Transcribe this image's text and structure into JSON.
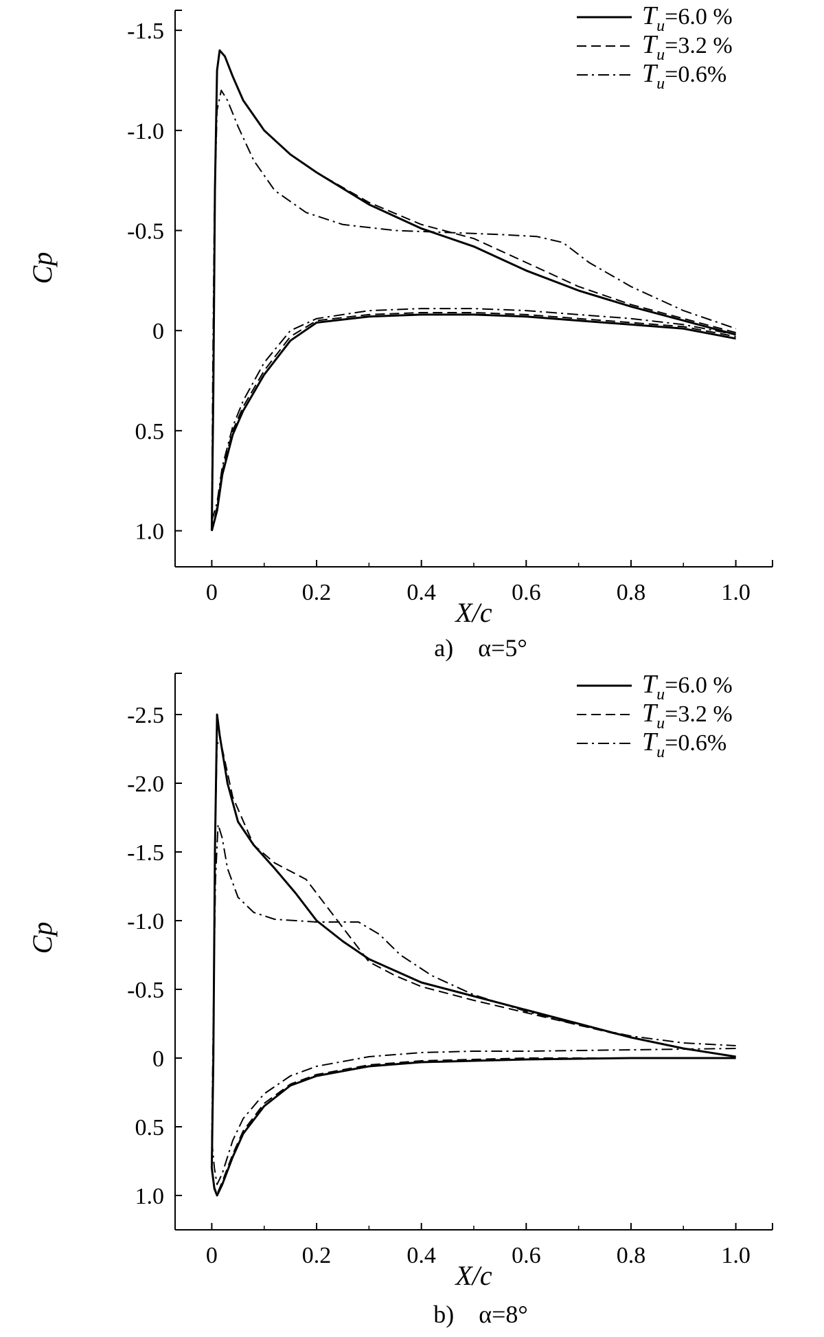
{
  "chart_data": [
    {
      "type": "line",
      "caption": "a)　α=5°",
      "xlabel": "X/c",
      "ylabel": "Cp",
      "xlim": [
        -0.07,
        1.07
      ],
      "ylim": [
        1.18,
        -1.6
      ],
      "y_inverted": true,
      "xticks": [
        "0",
        "0.2",
        "0.4",
        "0.6",
        "0.8",
        "1.0"
      ],
      "xtick_values": [
        0,
        0.2,
        0.4,
        0.6,
        0.8,
        1.0
      ],
      "yticks": [
        "-1.5",
        "-1.0",
        "-0.5",
        "0",
        "0.5",
        "1.0"
      ],
      "ytick_values": [
        -1.5,
        -1.0,
        -0.5,
        0,
        0.5,
        1.0
      ],
      "grid": false,
      "legend_position": "top-right",
      "series": [
        {
          "name": "T_u=6.0 %",
          "style": "solid",
          "upper": [
            [
              0.0,
              1.0
            ],
            [
              0.003,
              0.3
            ],
            [
              0.006,
              -0.7
            ],
            [
              0.01,
              -1.3
            ],
            [
              0.015,
              -1.4
            ],
            [
              0.025,
              -1.37
            ],
            [
              0.04,
              -1.27
            ],
            [
              0.06,
              -1.15
            ],
            [
              0.1,
              -1.0
            ],
            [
              0.15,
              -0.88
            ],
            [
              0.2,
              -0.79
            ],
            [
              0.3,
              -0.63
            ],
            [
              0.4,
              -0.51
            ],
            [
              0.5,
              -0.42
            ],
            [
              0.6,
              -0.3
            ],
            [
              0.7,
              -0.2
            ],
            [
              0.8,
              -0.12
            ],
            [
              0.9,
              -0.05
            ],
            [
              1.0,
              0.02
            ]
          ],
          "lower": [
            [
              0.0,
              1.0
            ],
            [
              0.01,
              0.9
            ],
            [
              0.02,
              0.72
            ],
            [
              0.04,
              0.52
            ],
            [
              0.06,
              0.4
            ],
            [
              0.1,
              0.22
            ],
            [
              0.15,
              0.05
            ],
            [
              0.2,
              -0.04
            ],
            [
              0.3,
              -0.07
            ],
            [
              0.4,
              -0.08
            ],
            [
              0.5,
              -0.08
            ],
            [
              0.6,
              -0.07
            ],
            [
              0.7,
              -0.05
            ],
            [
              0.8,
              -0.03
            ],
            [
              0.9,
              -0.01
            ],
            [
              1.0,
              0.04
            ]
          ]
        },
        {
          "name": "T_u=3.2 %",
          "style": "dashed",
          "upper": [
            [
              0.0,
              1.0
            ],
            [
              0.003,
              0.3
            ],
            [
              0.006,
              -0.7
            ],
            [
              0.01,
              -1.3
            ],
            [
              0.015,
              -1.4
            ],
            [
              0.025,
              -1.37
            ],
            [
              0.04,
              -1.27
            ],
            [
              0.06,
              -1.15
            ],
            [
              0.1,
              -1.0
            ],
            [
              0.15,
              -0.88
            ],
            [
              0.2,
              -0.79
            ],
            [
              0.3,
              -0.64
            ],
            [
              0.4,
              -0.53
            ],
            [
              0.5,
              -0.46
            ],
            [
              0.6,
              -0.34
            ],
            [
              0.7,
              -0.22
            ],
            [
              0.8,
              -0.13
            ],
            [
              0.9,
              -0.06
            ],
            [
              1.0,
              0.01
            ]
          ],
          "lower": [
            [
              0.0,
              1.0
            ],
            [
              0.01,
              0.88
            ],
            [
              0.02,
              0.7
            ],
            [
              0.04,
              0.5
            ],
            [
              0.06,
              0.38
            ],
            [
              0.1,
              0.2
            ],
            [
              0.15,
              0.03
            ],
            [
              0.2,
              -0.05
            ],
            [
              0.3,
              -0.08
            ],
            [
              0.4,
              -0.09
            ],
            [
              0.5,
              -0.09
            ],
            [
              0.6,
              -0.08
            ],
            [
              0.7,
              -0.06
            ],
            [
              0.8,
              -0.04
            ],
            [
              0.9,
              -0.02
            ],
            [
              1.0,
              0.03
            ]
          ]
        },
        {
          "name": "T_u=0.6%",
          "style": "dashdot",
          "upper": [
            [
              0.0,
              0.95
            ],
            [
              0.002,
              0.2
            ],
            [
              0.005,
              -0.6
            ],
            [
              0.01,
              -1.1
            ],
            [
              0.018,
              -1.2
            ],
            [
              0.03,
              -1.15
            ],
            [
              0.05,
              -1.02
            ],
            [
              0.08,
              -0.85
            ],
            [
              0.12,
              -0.7
            ],
            [
              0.18,
              -0.59
            ],
            [
              0.25,
              -0.53
            ],
            [
              0.35,
              -0.5
            ],
            [
              0.45,
              -0.49
            ],
            [
              0.55,
              -0.48
            ],
            [
              0.62,
              -0.47
            ],
            [
              0.67,
              -0.44
            ],
            [
              0.72,
              -0.34
            ],
            [
              0.8,
              -0.22
            ],
            [
              0.9,
              -0.1
            ],
            [
              1.0,
              -0.01
            ]
          ],
          "lower": [
            [
              0.0,
              0.95
            ],
            [
              0.01,
              0.86
            ],
            [
              0.02,
              0.68
            ],
            [
              0.04,
              0.48
            ],
            [
              0.06,
              0.35
            ],
            [
              0.1,
              0.16
            ],
            [
              0.15,
              0.0
            ],
            [
              0.2,
              -0.06
            ],
            [
              0.3,
              -0.1
            ],
            [
              0.4,
              -0.11
            ],
            [
              0.5,
              -0.11
            ],
            [
              0.6,
              -0.1
            ],
            [
              0.7,
              -0.08
            ],
            [
              0.8,
              -0.06
            ],
            [
              0.9,
              -0.03
            ],
            [
              1.0,
              0.02
            ]
          ]
        }
      ],
      "legend": [
        {
          "t": "T",
          "sub": "u",
          "rest": "=6.0 %",
          "style": "solid"
        },
        {
          "t": "T",
          "sub": "u",
          "rest": "=3.2 %",
          "style": "dashed"
        },
        {
          "t": "T",
          "sub": "u",
          "rest": "=0.6%",
          "style": "dashdot"
        }
      ]
    },
    {
      "type": "line",
      "caption": "b)　α=8°",
      "xlabel": "X/c",
      "ylabel": "Cp",
      "xlim": [
        -0.07,
        1.07
      ],
      "ylim": [
        1.25,
        -2.8
      ],
      "y_inverted": true,
      "xticks": [
        "0",
        "0.2",
        "0.4",
        "0.6",
        "0.8",
        "1.0"
      ],
      "xtick_values": [
        0,
        0.2,
        0.4,
        0.6,
        0.8,
        1.0
      ],
      "yticks": [
        "-2.5",
        "-2.0",
        "-1.5",
        "-1.0",
        "-0.5",
        "0",
        "0.5",
        "1.0"
      ],
      "ytick_values": [
        -2.5,
        -2.0,
        -1.5,
        -1.0,
        -0.5,
        0,
        0.5,
        1.0
      ],
      "grid": false,
      "legend_position": "top-right",
      "series": [
        {
          "name": "T_u=6.0 %",
          "style": "solid",
          "upper": [
            [
              0.0,
              0.8
            ],
            [
              0.003,
              0.0
            ],
            [
              0.006,
              -1.5
            ],
            [
              0.01,
              -2.5
            ],
            [
              0.015,
              -2.35
            ],
            [
              0.03,
              -2.0
            ],
            [
              0.05,
              -1.72
            ],
            [
              0.08,
              -1.55
            ],
            [
              0.12,
              -1.38
            ],
            [
              0.16,
              -1.2
            ],
            [
              0.2,
              -1.0
            ],
            [
              0.25,
              -0.85
            ],
            [
              0.3,
              -0.72
            ],
            [
              0.4,
              -0.55
            ],
            [
              0.5,
              -0.45
            ],
            [
              0.6,
              -0.35
            ],
            [
              0.7,
              -0.25
            ],
            [
              0.8,
              -0.15
            ],
            [
              0.9,
              -0.07
            ],
            [
              1.0,
              -0.01
            ]
          ],
          "lower": [
            [
              0.0,
              0.8
            ],
            [
              0.005,
              0.95
            ],
            [
              0.01,
              1.0
            ],
            [
              0.02,
              0.92
            ],
            [
              0.04,
              0.72
            ],
            [
              0.06,
              0.55
            ],
            [
              0.1,
              0.35
            ],
            [
              0.15,
              0.2
            ],
            [
              0.2,
              0.13
            ],
            [
              0.3,
              0.06
            ],
            [
              0.4,
              0.03
            ],
            [
              0.5,
              0.02
            ],
            [
              0.6,
              0.01
            ],
            [
              0.8,
              0.0
            ],
            [
              1.0,
              0.0
            ]
          ]
        },
        {
          "name": "T_u=3.2 %",
          "style": "dashed",
          "upper": [
            [
              0.0,
              0.8
            ],
            [
              0.003,
              0.0
            ],
            [
              0.006,
              -1.5
            ],
            [
              0.01,
              -2.3
            ],
            [
              0.02,
              -2.25
            ],
            [
              0.04,
              -1.9
            ],
            [
              0.08,
              -1.55
            ],
            [
              0.12,
              -1.42
            ],
            [
              0.18,
              -1.3
            ],
            [
              0.22,
              -1.1
            ],
            [
              0.26,
              -0.9
            ],
            [
              0.3,
              -0.7
            ],
            [
              0.35,
              -0.6
            ],
            [
              0.4,
              -0.52
            ],
            [
              0.5,
              -0.42
            ],
            [
              0.6,
              -0.33
            ],
            [
              0.7,
              -0.24
            ],
            [
              0.8,
              -0.15
            ],
            [
              0.9,
              -0.07
            ],
            [
              1.0,
              -0.01
            ]
          ],
          "lower": [
            [
              0.0,
              0.8
            ],
            [
              0.005,
              0.94
            ],
            [
              0.01,
              0.99
            ],
            [
              0.02,
              0.9
            ],
            [
              0.04,
              0.7
            ],
            [
              0.06,
              0.53
            ],
            [
              0.1,
              0.33
            ],
            [
              0.15,
              0.19
            ],
            [
              0.2,
              0.12
            ],
            [
              0.3,
              0.05
            ],
            [
              0.4,
              0.02
            ],
            [
              0.5,
              0.01
            ],
            [
              0.6,
              0.0
            ],
            [
              0.8,
              0.0
            ],
            [
              1.0,
              0.0
            ]
          ]
        },
        {
          "name": "T_u=0.6%",
          "style": "dashdot",
          "upper": [
            [
              0.0,
              0.6
            ],
            [
              0.003,
              -0.3
            ],
            [
              0.007,
              -1.3
            ],
            [
              0.012,
              -1.7
            ],
            [
              0.02,
              -1.6
            ],
            [
              0.03,
              -1.38
            ],
            [
              0.05,
              -1.17
            ],
            [
              0.08,
              -1.06
            ],
            [
              0.12,
              -1.01
            ],
            [
              0.2,
              -0.99
            ],
            [
              0.28,
              -0.99
            ],
            [
              0.32,
              -0.9
            ],
            [
              0.36,
              -0.75
            ],
            [
              0.42,
              -0.6
            ],
            [
              0.5,
              -0.46
            ],
            [
              0.6,
              -0.34
            ],
            [
              0.7,
              -0.24
            ],
            [
              0.8,
              -0.16
            ],
            [
              0.9,
              -0.11
            ],
            [
              1.0,
              -0.09
            ]
          ],
          "lower": [
            [
              0.0,
              0.6
            ],
            [
              0.005,
              0.8
            ],
            [
              0.01,
              0.92
            ],
            [
              0.02,
              0.84
            ],
            [
              0.04,
              0.6
            ],
            [
              0.06,
              0.44
            ],
            [
              0.1,
              0.26
            ],
            [
              0.15,
              0.13
            ],
            [
              0.2,
              0.06
            ],
            [
              0.3,
              -0.01
            ],
            [
              0.4,
              -0.04
            ],
            [
              0.5,
              -0.05
            ],
            [
              0.6,
              -0.05
            ],
            [
              0.8,
              -0.06
            ],
            [
              1.0,
              -0.07
            ]
          ]
        }
      ],
      "legend": [
        {
          "t": "T",
          "sub": "u",
          "rest": "=6.0 %",
          "style": "solid"
        },
        {
          "t": "T",
          "sub": "u",
          "rest": "=3.2 %",
          "style": "dashed"
        },
        {
          "t": "T",
          "sub": "u",
          "rest": "=0.6%",
          "style": "dashdot"
        }
      ]
    }
  ]
}
